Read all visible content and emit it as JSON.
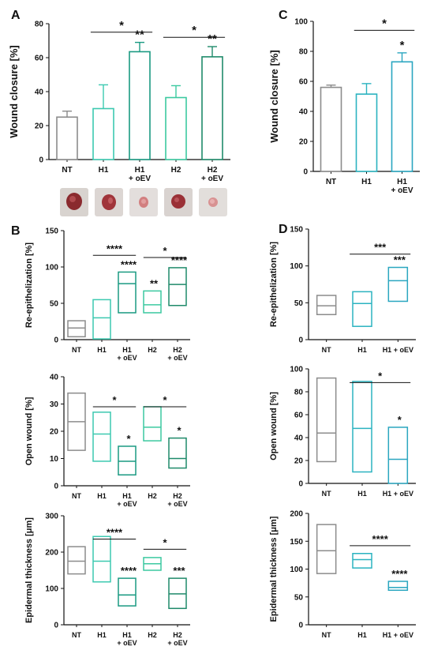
{
  "colors": {
    "NT": "#8c8c8c",
    "H1": "#3cc9b0",
    "H1 + oEV": "#1a9a82",
    "H2": "#3cc9a0",
    "H2 + oEV": "#1f8a6a",
    "C_H1": "#2bb3c0",
    "C_H1 + oEV": "#2aa6c0"
  },
  "chart_data": [
    {
      "id": "A",
      "panel_label": "A",
      "type": "bar",
      "ylabel": "Wound closure [%]",
      "ylim": [
        0,
        80
      ],
      "yticks": [
        "0",
        "20",
        "40",
        "60",
        "80"
      ],
      "categories": [
        "NT",
        "H1",
        "H1\n+ oEV",
        "H2",
        "H2\n+ oEV"
      ],
      "color_keys": [
        "NT",
        "H1",
        "H1 + oEV",
        "H2",
        "H2 + oEV"
      ],
      "values": [
        25,
        30,
        63.5,
        36.5,
        60.5
      ],
      "errors": [
        3.5,
        14,
        5.5,
        7,
        6
      ],
      "point_stars": [
        "",
        "",
        "**",
        "",
        "**"
      ],
      "brackets": [
        {
          "from": 1,
          "to": 2,
          "y": 75,
          "label": "*"
        },
        {
          "from": 3,
          "to": 4,
          "y": 72,
          "label": "*"
        }
      ]
    },
    {
      "id": "C",
      "panel_label": "C",
      "type": "bar",
      "ylabel": "Wound closure [%]",
      "ylim": [
        0,
        100
      ],
      "yticks": [
        "0",
        "20",
        "40",
        "60",
        "80",
        "100"
      ],
      "categories": [
        "NT",
        "H1",
        "H1\n+ oEV"
      ],
      "color_keys": [
        "NT",
        "C_H1",
        "C_H1 + oEV"
      ],
      "values": [
        56,
        51.5,
        73
      ],
      "errors": [
        1.5,
        7,
        6
      ],
      "point_stars": [
        "",
        "",
        "*"
      ],
      "brackets": [
        {
          "from": 1,
          "to": 2,
          "y": 94,
          "label": "*"
        }
      ]
    },
    {
      "id": "B1",
      "panel_label": "B",
      "type": "box",
      "ylabel": "Re-epithelization [%]",
      "ylim": [
        0,
        150
      ],
      "yticks": [
        "0",
        "50",
        "100",
        "150"
      ],
      "categories": [
        "NT",
        "H1",
        "H1\n+ oEV",
        "H2",
        "H2\n+ oEV"
      ],
      "color_keys": [
        "NT",
        "H1",
        "H1 + oEV",
        "H2",
        "H2 + oEV"
      ],
      "boxes": [
        {
          "min": 4,
          "median": 16,
          "max": 26
        },
        {
          "min": 1,
          "median": 30,
          "max": 55
        },
        {
          "min": 37,
          "median": 77,
          "max": 93
        },
        {
          "min": 37,
          "median": 48,
          "max": 67
        },
        {
          "min": 47,
          "median": 76,
          "max": 99
        }
      ],
      "point_stars": [
        "",
        "",
        "****",
        "**",
        "****"
      ],
      "brackets": [
        {
          "from": 1,
          "to": 2,
          "y": 116,
          "label": "****"
        },
        {
          "from": 3,
          "to": 4,
          "y": 113,
          "label": "*"
        }
      ]
    },
    {
      "id": "B2",
      "type": "box",
      "ylabel": "Open wound [%]",
      "ylim": [
        0,
        40
      ],
      "yticks": [
        "0",
        "10",
        "20",
        "30",
        "40"
      ],
      "categories": [
        "NT",
        "H1",
        "H1\n+ oEV",
        "H2",
        "H2\n+ oEV"
      ],
      "color_keys": [
        "NT",
        "H1",
        "H1 + oEV",
        "H2",
        "H2 + oEV"
      ],
      "boxes": [
        {
          "min": 13,
          "median": 23.5,
          "max": 34
        },
        {
          "min": 9,
          "median": 19,
          "max": 27
        },
        {
          "min": 4,
          "median": 9,
          "max": 14.5
        },
        {
          "min": 16.5,
          "median": 21.5,
          "max": 29
        },
        {
          "min": 6.5,
          "median": 10,
          "max": 17.5
        }
      ],
      "point_stars": [
        "",
        "",
        "*",
        "",
        "*"
      ],
      "brackets": [
        {
          "from": 1,
          "to": 2,
          "y": 29,
          "label": "*"
        },
        {
          "from": 3,
          "to": 4,
          "y": 29,
          "label": "*"
        }
      ]
    },
    {
      "id": "B3",
      "type": "box",
      "ylabel": "Epidermal thickness [μm]",
      "ylim": [
        0,
        300
      ],
      "yticks": [
        "0",
        "100",
        "200",
        "300"
      ],
      "categories": [
        "NT",
        "H1",
        "H1\n+ oEV",
        "H2",
        "H2\n+ oEV"
      ],
      "color_keys": [
        "NT",
        "H1",
        "H1 + oEV",
        "H2",
        "H2 + oEV"
      ],
      "boxes": [
        {
          "min": 140,
          "median": 175,
          "max": 215
        },
        {
          "min": 118,
          "median": 175,
          "max": 243
        },
        {
          "min": 52,
          "median": 82,
          "max": 128
        },
        {
          "min": 150,
          "median": 168,
          "max": 185
        },
        {
          "min": 45,
          "median": 85,
          "max": 128
        }
      ],
      "point_stars": [
        "",
        "",
        "****",
        "",
        "***"
      ],
      "brackets": [
        {
          "from": 1,
          "to": 2,
          "y": 236,
          "label": "****"
        },
        {
          "from": 3,
          "to": 4,
          "y": 208,
          "label": "*"
        }
      ]
    },
    {
      "id": "D1",
      "panel_label": "D",
      "type": "box",
      "ylabel": "Re-epithelization [%]",
      "ylim": [
        0,
        150
      ],
      "yticks": [
        "0",
        "50",
        "100",
        "150"
      ],
      "categories": [
        "NT",
        "H1",
        "H1 + oEV"
      ],
      "color_keys": [
        "NT",
        "C_H1",
        "C_H1 + oEV"
      ],
      "boxes": [
        {
          "min": 34,
          "median": 46,
          "max": 60
        },
        {
          "min": 18,
          "median": 49,
          "max": 65
        },
        {
          "min": 52,
          "median": 80,
          "max": 98
        }
      ],
      "point_stars": [
        "",
        "",
        "***"
      ],
      "brackets": [
        {
          "from": 1,
          "to": 2,
          "y": 116,
          "label": "***"
        }
      ]
    },
    {
      "id": "D2",
      "type": "box",
      "ylabel": "Open wound [%]",
      "ylim": [
        0,
        100
      ],
      "yticks": [
        "0",
        "20",
        "40",
        "60",
        "80",
        "100"
      ],
      "categories": [
        "NT",
        "H1",
        "H1 + oEV"
      ],
      "color_keys": [
        "NT",
        "C_H1",
        "C_H1 + oEV"
      ],
      "boxes": [
        {
          "min": 19,
          "median": 44,
          "max": 92
        },
        {
          "min": 10,
          "median": 48,
          "max": 89
        },
        {
          "min": 0,
          "median": 21,
          "max": 49
        }
      ],
      "point_stars": [
        "",
        "",
        "*"
      ],
      "brackets": [
        {
          "from": 1,
          "to": 2,
          "y": 88,
          "label": "*"
        }
      ]
    },
    {
      "id": "D3",
      "type": "box",
      "ylabel": "Epidermal thickness [μm]",
      "ylim": [
        0,
        200
      ],
      "yticks": [
        "0",
        "50",
        "100",
        "150",
        "200"
      ],
      "categories": [
        "NT",
        "H1",
        "H1 + oEV"
      ],
      "color_keys": [
        "NT",
        "C_H1",
        "C_H1 + oEV"
      ],
      "boxes": [
        {
          "min": 92,
          "median": 133,
          "max": 180
        },
        {
          "min": 102,
          "median": 117,
          "max": 128
        },
        {
          "min": 62,
          "median": 67,
          "max": 78
        }
      ],
      "point_stars": [
        "",
        "",
        "****"
      ],
      "brackets": [
        {
          "from": 1,
          "to": 2,
          "y": 142,
          "label": "****"
        }
      ]
    }
  ]
}
